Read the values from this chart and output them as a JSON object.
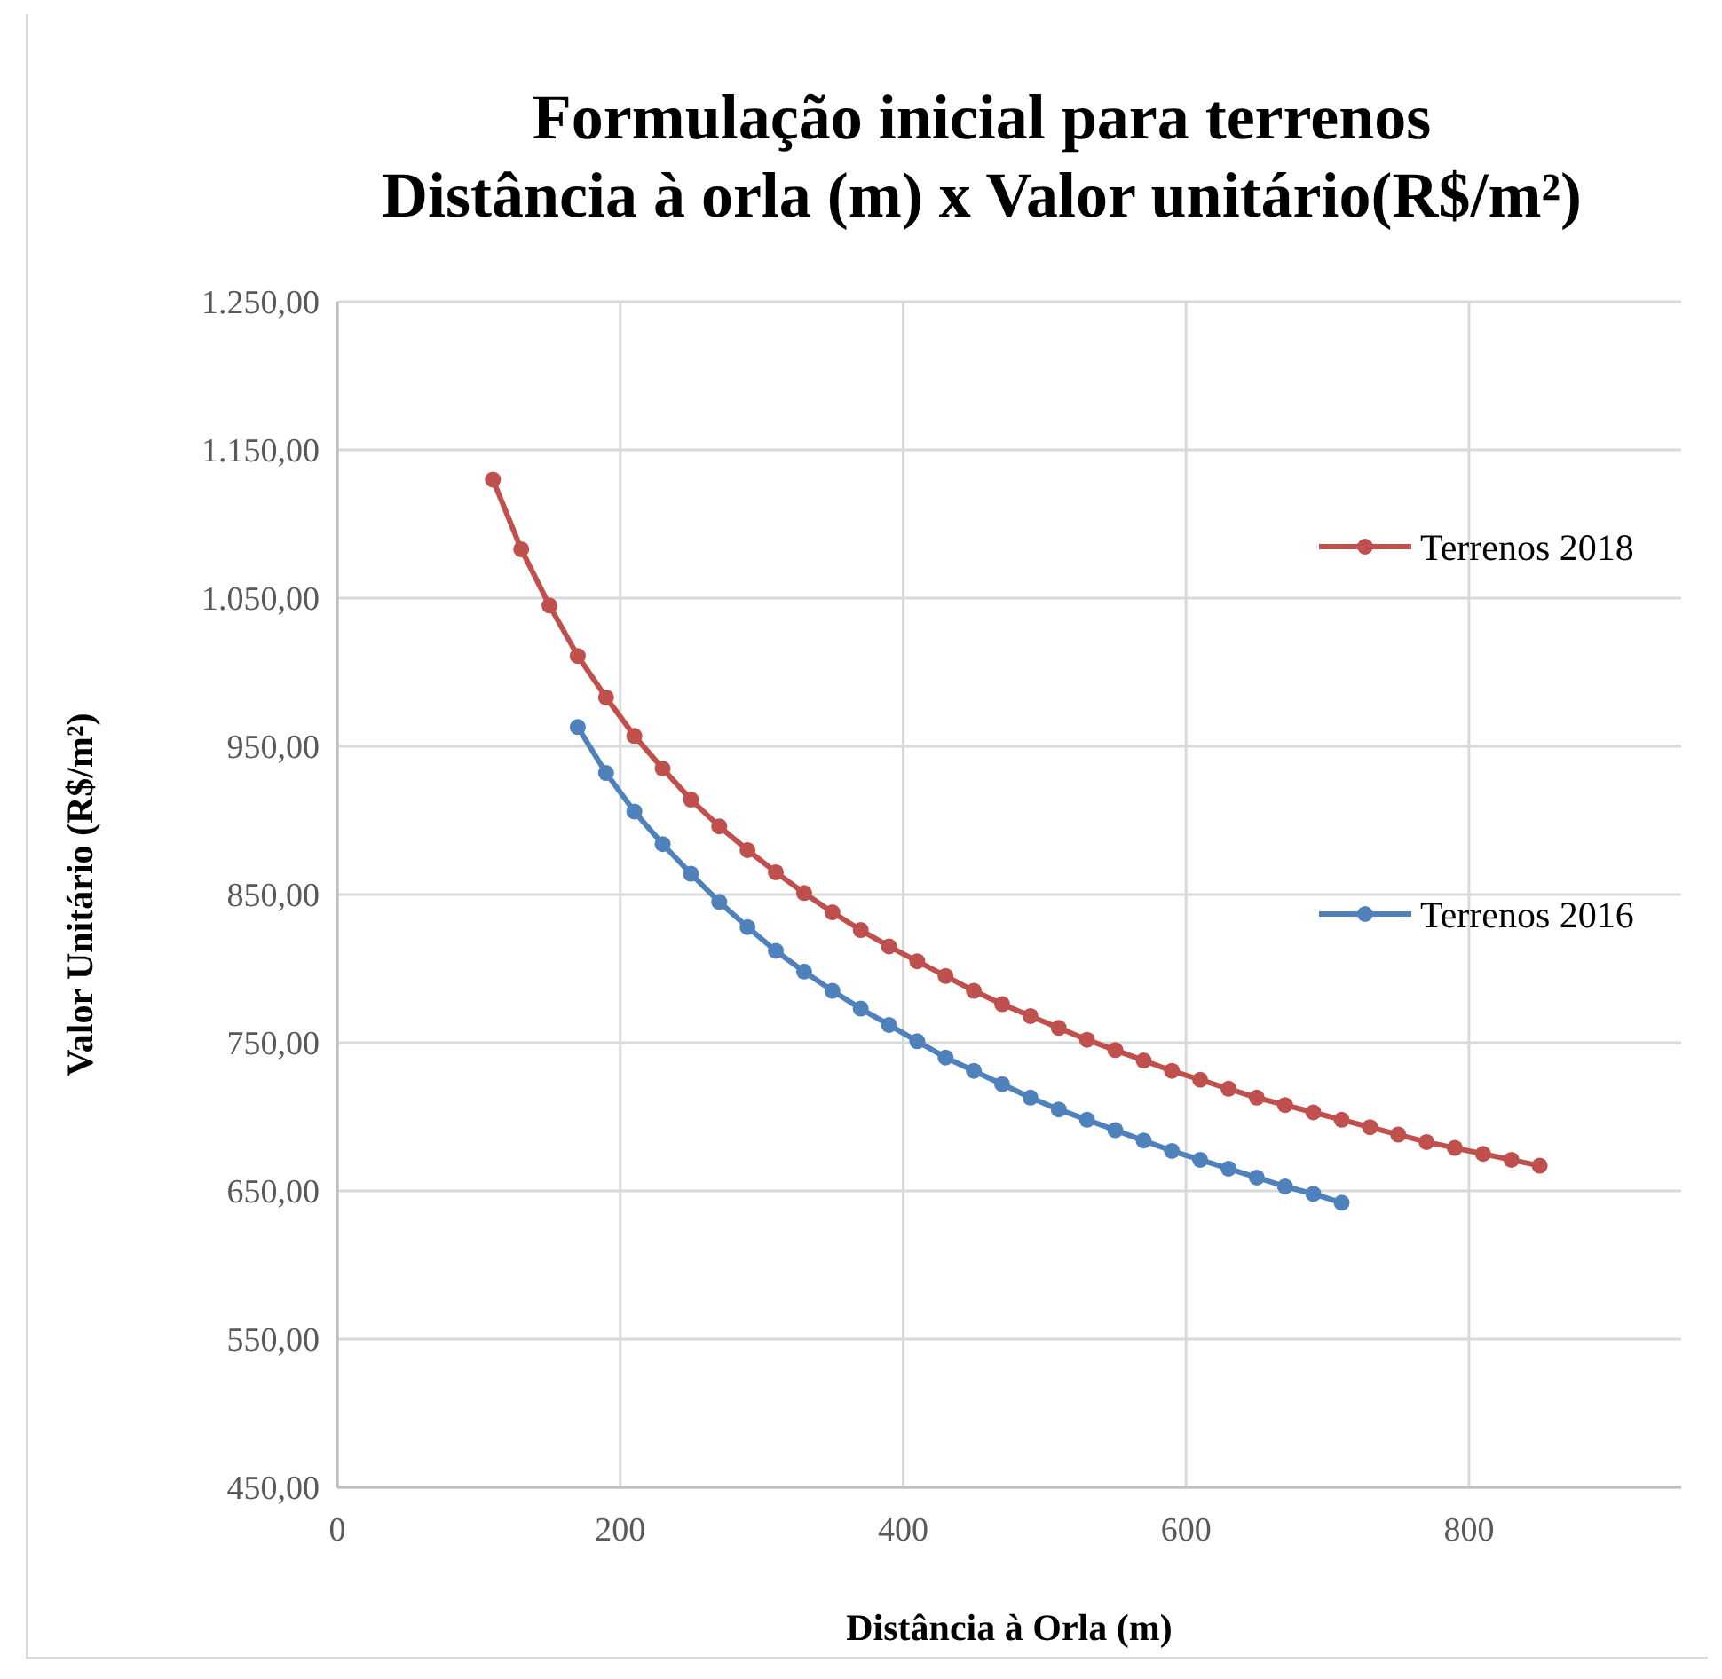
{
  "chart_data": {
    "type": "line",
    "title": "Formulação inicial para terrenos\nDistância à orla (m) x Valor unitário(R$/m²)",
    "xlabel": "Distância à Orla (m)",
    "ylabel": "Valor Unitário (R$/m²)",
    "xlim": [
      0,
      950
    ],
    "xticks": [
      0,
      200,
      400,
      600,
      800
    ],
    "ylim": [
      450,
      1250
    ],
    "yticks": [
      {
        "value": 450,
        "label": "450,00"
      },
      {
        "value": 550,
        "label": "550,00"
      },
      {
        "value": 650,
        "label": "650,00"
      },
      {
        "value": 750,
        "label": "750,00"
      },
      {
        "value": 850,
        "label": "850,00"
      },
      {
        "value": 950,
        "label": "950,00"
      },
      {
        "value": 1050,
        "label": "1.050,00"
      },
      {
        "value": 1150,
        "label": "1.150,00"
      },
      {
        "value": 1250,
        "label": "1.250,00"
      }
    ],
    "grid": true,
    "legend": "right",
    "marker": "circle",
    "line_style": "solid",
    "series": [
      {
        "name": "Terrenos 2018",
        "color": "#c0504d",
        "x": [
          110,
          130,
          150,
          170,
          190,
          210,
          230,
          250,
          270,
          290,
          310,
          330,
          350,
          370,
          390,
          410,
          430,
          450,
          470,
          490,
          510,
          530,
          550,
          570,
          590,
          610,
          630,
          650,
          670,
          690,
          710,
          730,
          750,
          770,
          790,
          810,
          830,
          850
        ],
        "values": [
          1130,
          1083,
          1045,
          1011,
          983,
          957,
          935,
          914,
          896,
          880,
          865,
          851,
          838,
          826,
          815,
          805,
          795,
          785,
          776,
          768,
          760,
          752,
          745,
          738,
          731,
          725,
          719,
          713,
          708,
          703,
          698,
          693,
          688,
          683,
          679,
          675,
          671,
          667
        ]
      },
      {
        "name": "Terrenos 2016",
        "color": "#4f81bd",
        "x": [
          170,
          190,
          210,
          230,
          250,
          270,
          290,
          310,
          330,
          350,
          370,
          390,
          410,
          430,
          450,
          470,
          490,
          510,
          530,
          550,
          570,
          590,
          610,
          630,
          650,
          670,
          690,
          710
        ],
        "values": [
          963,
          932,
          906,
          884,
          864,
          845,
          828,
          812,
          798,
          785,
          773,
          762,
          751,
          740,
          731,
          722,
          713,
          705,
          698,
          691,
          684,
          677,
          671,
          665,
          659,
          653,
          648,
          642
        ]
      }
    ]
  }
}
